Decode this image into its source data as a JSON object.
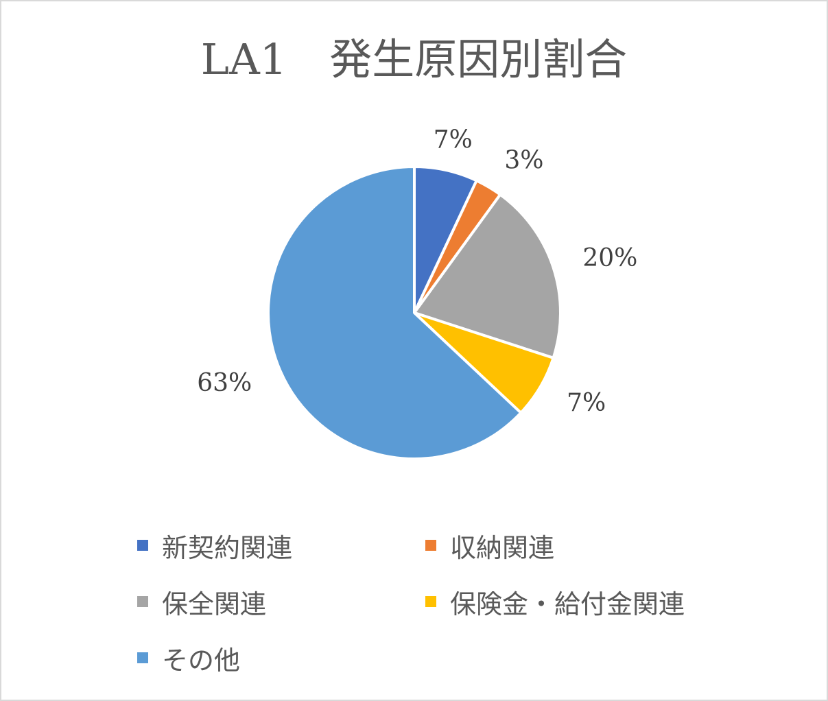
{
  "chart_data": {
    "type": "pie",
    "title": "LA1　発生原因別割合",
    "categories": [
      "新契約関連",
      "収納関連",
      "保全関連",
      "保険金・給付金関連",
      "その他"
    ],
    "values": [
      7,
      3,
      20,
      7,
      63
    ],
    "value_labels": [
      "7%",
      "3%",
      "20%",
      "7%",
      "63%"
    ],
    "unit": "%",
    "colors": [
      "#4472c4",
      "#ed7d31",
      "#a5a5a5",
      "#ffc000",
      "#5b9bd5"
    ],
    "start_angle_deg": 0,
    "direction": "clockwise",
    "legend_position": "bottom",
    "data_labels": "outside-end"
  }
}
